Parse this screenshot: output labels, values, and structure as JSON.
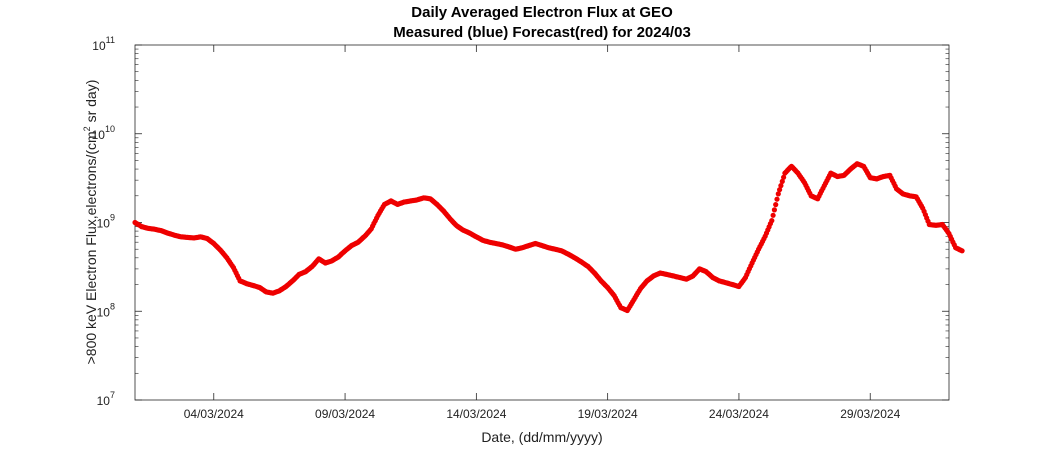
{
  "chart_data": {
    "type": "scatter",
    "title": "Daily Averaged Electron Flux at GEO",
    "subtitle": "Measured (blue) Forecast(red) for 2024/03",
    "xlabel": "Date, (dd/mm/yyyy)",
    "ylabel": ">800 keV Electron Flux,electrons/(cm",
    "ylabel_sup": "2",
    "ylabel_tail": " sr day)",
    "x_ticks": [
      "04/03/2024",
      "09/03/2024",
      "14/03/2024",
      "19/03/2024",
      "24/03/2024",
      "29/03/2024"
    ],
    "x_start": "01/03/2024",
    "x_end": "01/04/2024",
    "y_scale": "log",
    "ylim": [
      10000000,
      100000000000
    ],
    "y_ticks": [
      {
        "base": "10",
        "exp": "7"
      },
      {
        "base": "10",
        "exp": "8"
      },
      {
        "base": "10",
        "exp": "9"
      },
      {
        "base": "10",
        "exp": "10"
      },
      {
        "base": "10",
        "exp": "11"
      }
    ],
    "grid": false,
    "series": [
      {
        "color": "#ee0000",
        "points": [
          [
            "01/03/2024 00:00",
            1000000000.0
          ],
          [
            "01/03/2024 06:00",
            900000000.0
          ],
          [
            "01/03/2024 12:00",
            860000000.0
          ],
          [
            "01/03/2024 18:00",
            840000000.0
          ],
          [
            "02/03/2024 00:00",
            810000000.0
          ],
          [
            "02/03/2024 06:00",
            760000000.0
          ],
          [
            "02/03/2024 12:00",
            720000000.0
          ],
          [
            "02/03/2024 18:00",
            690000000.0
          ],
          [
            "03/03/2024 00:00",
            680000000.0
          ],
          [
            "03/03/2024 06:00",
            670000000.0
          ],
          [
            "03/03/2024 12:00",
            690000000.0
          ],
          [
            "03/03/2024 18:00",
            660000000.0
          ],
          [
            "04/03/2024 00:00",
            580000000.0
          ],
          [
            "04/03/2024 06:00",
            490000000.0
          ],
          [
            "04/03/2024 12:00",
            400000000.0
          ],
          [
            "04/03/2024 18:00",
            310000000.0
          ],
          [
            "05/03/2024 00:00",
            220000000.0
          ],
          [
            "05/03/2024 06:00",
            205000000.0
          ],
          [
            "05/03/2024 12:00",
            195000000.0
          ],
          [
            "05/03/2024 18:00",
            185000000.0
          ],
          [
            "06/03/2024 00:00",
            165000000.0
          ],
          [
            "06/03/2024 06:00",
            160000000.0
          ],
          [
            "06/03/2024 12:00",
            170000000.0
          ],
          [
            "06/03/2024 18:00",
            190000000.0
          ],
          [
            "07/03/2024 00:00",
            220000000.0
          ],
          [
            "07/03/2024 06:00",
            260000000.0
          ],
          [
            "07/03/2024 12:00",
            280000000.0
          ],
          [
            "07/03/2024 18:00",
            320000000.0
          ],
          [
            "08/03/2024 00:00",
            390000000.0
          ],
          [
            "08/03/2024 06:00",
            350000000.0
          ],
          [
            "08/03/2024 12:00",
            370000000.0
          ],
          [
            "08/03/2024 18:00",
            410000000.0
          ],
          [
            "09/03/2024 00:00",
            480000000.0
          ],
          [
            "09/03/2024 06:00",
            550000000.0
          ],
          [
            "09/03/2024 12:00",
            600000000.0
          ],
          [
            "09/03/2024 18:00",
            700000000.0
          ],
          [
            "10/03/2024 00:00",
            850000000.0
          ],
          [
            "10/03/2024 06:00",
            1200000000.0
          ],
          [
            "10/03/2024 12:00",
            1600000000.0
          ],
          [
            "10/03/2024 18:00",
            1750000000.0
          ],
          [
            "11/03/2024 00:00",
            1600000000.0
          ],
          [
            "11/03/2024 06:00",
            1700000000.0
          ],
          [
            "11/03/2024 12:00",
            1750000000.0
          ],
          [
            "11/03/2024 18:00",
            1800000000.0
          ],
          [
            "12/03/2024 00:00",
            1900000000.0
          ],
          [
            "12/03/2024 06:00",
            1850000000.0
          ],
          [
            "12/03/2024 12:00",
            1600000000.0
          ],
          [
            "12/03/2024 18:00",
            1350000000.0
          ],
          [
            "13/03/2024 00:00",
            1100000000.0
          ],
          [
            "13/03/2024 06:00",
            920000000.0
          ],
          [
            "13/03/2024 12:00",
            820000000.0
          ],
          [
            "13/03/2024 18:00",
            760000000.0
          ],
          [
            "14/03/2024 00:00",
            690000000.0
          ],
          [
            "14/03/2024 06:00",
            630000000.0
          ],
          [
            "14/03/2024 12:00",
            600000000.0
          ],
          [
            "14/03/2024 18:00",
            580000000.0
          ],
          [
            "15/03/2024 00:00",
            560000000.0
          ],
          [
            "15/03/2024 06:00",
            530000000.0
          ],
          [
            "15/03/2024 12:00",
            500000000.0
          ],
          [
            "15/03/2024 18:00",
            520000000.0
          ],
          [
            "16/03/2024 00:00",
            550000000.0
          ],
          [
            "16/03/2024 06:00",
            580000000.0
          ],
          [
            "16/03/2024 12:00",
            550000000.0
          ],
          [
            "16/03/2024 18:00",
            520000000.0
          ],
          [
            "17/03/2024 00:00",
            500000000.0
          ],
          [
            "17/03/2024 06:00",
            480000000.0
          ],
          [
            "17/03/2024 12:00",
            440000000.0
          ],
          [
            "17/03/2024 18:00",
            400000000.0
          ],
          [
            "18/03/2024 00:00",
            360000000.0
          ],
          [
            "18/03/2024 06:00",
            320000000.0
          ],
          [
            "18/03/2024 12:00",
            270000000.0
          ],
          [
            "18/03/2024 18:00",
            220000000.0
          ],
          [
            "19/03/2024 00:00",
            185000000.0
          ],
          [
            "19/03/2024 06:00",
            150000000.0
          ],
          [
            "19/03/2024 12:00",
            110000000.0
          ],
          [
            "19/03/2024 18:00",
            102000000.0
          ],
          [
            "20/03/2024 00:00",
            135000000.0
          ],
          [
            "20/03/2024 06:00",
            180000000.0
          ],
          [
            "20/03/2024 12:00",
            220000000.0
          ],
          [
            "20/03/2024 18:00",
            250000000.0
          ],
          [
            "21/03/2024 00:00",
            270000000.0
          ],
          [
            "21/03/2024 06:00",
            260000000.0
          ],
          [
            "21/03/2024 12:00",
            250000000.0
          ],
          [
            "21/03/2024 18:00",
            240000000.0
          ],
          [
            "22/03/2024 00:00",
            230000000.0
          ],
          [
            "22/03/2024 06:00",
            250000000.0
          ],
          [
            "22/03/2024 12:00",
            300000000.0
          ],
          [
            "22/03/2024 18:00",
            280000000.0
          ],
          [
            "23/03/2024 00:00",
            240000000.0
          ],
          [
            "23/03/2024 06:00",
            220000000.0
          ],
          [
            "23/03/2024 12:00",
            210000000.0
          ],
          [
            "23/03/2024 18:00",
            200000000.0
          ],
          [
            "24/03/2024 00:00",
            190000000.0
          ],
          [
            "24/03/2024 06:00",
            240000000.0
          ],
          [
            "24/03/2024 12:00",
            350000000.0
          ],
          [
            "24/03/2024 18:00",
            500000000.0
          ],
          [
            "25/03/2024 00:00",
            700000000.0
          ],
          [
            "25/03/2024 06:00",
            1050000000.0
          ],
          [
            "25/03/2024 12:00",
            2100000000.0
          ],
          [
            "25/03/2024 18:00",
            3600000000.0
          ],
          [
            "26/03/2024 00:00",
            4300000000.0
          ],
          [
            "26/03/2024 06:00",
            3600000000.0
          ],
          [
            "26/03/2024 12:00",
            2800000000.0
          ],
          [
            "26/03/2024 18:00",
            2000000000.0
          ],
          [
            "27/03/2024 00:00",
            1850000000.0
          ],
          [
            "27/03/2024 06:00",
            2600000000.0
          ],
          [
            "27/03/2024 12:00",
            3600000000.0
          ],
          [
            "27/03/2024 18:00",
            3300000000.0
          ],
          [
            "28/03/2024 00:00",
            3400000000.0
          ],
          [
            "28/03/2024 06:00",
            4000000000.0
          ],
          [
            "28/03/2024 12:00",
            4600000000.0
          ],
          [
            "28/03/2024 18:00",
            4300000000.0
          ],
          [
            "29/03/2024 00:00",
            3200000000.0
          ],
          [
            "29/03/2024 06:00",
            3100000000.0
          ],
          [
            "29/03/2024 12:00",
            3300000000.0
          ],
          [
            "29/03/2024 18:00",
            3400000000.0
          ],
          [
            "30/03/2024 00:00",
            2400000000.0
          ],
          [
            "30/03/2024 06:00",
            2100000000.0
          ],
          [
            "30/03/2024 12:00",
            2000000000.0
          ],
          [
            "30/03/2024 18:00",
            1950000000.0
          ],
          [
            "31/03/2024 00:00",
            1450000000.0
          ],
          [
            "31/03/2024 06:00",
            950000000.0
          ],
          [
            "31/03/2024 12:00",
            930000000.0
          ],
          [
            "31/03/2024 18:00",
            950000000.0
          ],
          [
            "01/04/2024 00:00",
            750000000.0
          ],
          [
            "01/04/2024 06:00",
            520000000.0
          ],
          [
            "01/04/2024 12:00",
            480000000.0
          ]
        ]
      }
    ]
  }
}
